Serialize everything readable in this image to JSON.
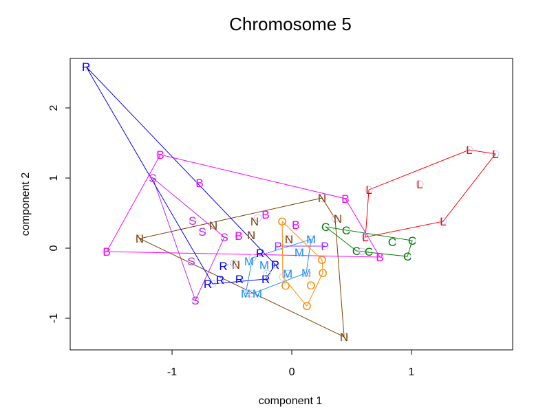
{
  "chart_data": {
    "type": "scatter",
    "title": "Chromosome 5",
    "xlabel": "component 1",
    "ylabel": "component 2",
    "xlim": [
      -1.851,
      1.845
    ],
    "ylim": [
      -1.451,
      2.706
    ],
    "xticks": [
      -1,
      0,
      1
    ],
    "yticks": [
      -1,
      0,
      1,
      2
    ],
    "grid": false,
    "hulls": true,
    "groups": [
      {
        "label": "L",
        "color": "#FF0000",
        "points": [
          [
            0.644,
            0.833
          ],
          [
            1.483,
            1.402
          ],
          [
            1.701,
            1.343
          ],
          [
            1.069,
            0.912
          ],
          [
            1.264,
            0.382
          ],
          [
            0.615,
            0.157
          ]
        ]
      },
      {
        "label": "C",
        "color": "#008000",
        "points": [
          [
            0.282,
            0.304
          ],
          [
            0.454,
            0.255
          ],
          [
            0.839,
            0.088
          ],
          [
            1.006,
            0.108
          ],
          [
            0.966,
            -0.118
          ],
          [
            0.54,
            -0.039
          ],
          [
            0.586,
            -0.049
          ]
        ]
      },
      {
        "label": "B",
        "color": "#FF00FF",
        "points": [
          [
            -1.098,
            1.333
          ],
          [
            -0.77,
            0.931
          ],
          [
            -0.218,
            0.48
          ],
          [
            0.034,
            0.333
          ],
          [
            -0.443,
            0.176
          ],
          [
            -1.546,
            -0.049
          ],
          [
            0.448,
            0.706
          ],
          [
            0.736,
            -0.127
          ]
        ]
      },
      {
        "label": "S",
        "color": "#CC22EE",
        "points": [
          [
            -1.161,
            1.0
          ],
          [
            -0.828,
            0.392
          ],
          [
            -0.747,
            0.235
          ],
          [
            -0.563,
            0.157
          ],
          [
            -0.839,
            -0.186
          ],
          [
            -0.805,
            -0.745
          ]
        ]
      },
      {
        "label": "N",
        "color": "#7F4000",
        "points": [
          [
            -1.27,
            0.137
          ],
          [
            -0.655,
            0.324
          ],
          [
            -0.282,
            0.431
          ],
          [
            -0.339,
            0.186
          ],
          [
            -0.466,
            -0.235
          ],
          [
            0.253,
            0.716
          ],
          [
            0.362,
            0.421
          ],
          [
            -0.023,
            0.127
          ],
          [
            0.437,
            -1.265
          ]
        ]
      },
      {
        "label": "R",
        "color": "#0000FF",
        "points": [
          [
            -1.718,
            2.588
          ],
          [
            -0.264,
            -0.069
          ],
          [
            -0.138,
            -0.235
          ],
          [
            -0.483,
            -0.216
          ],
          [
            -0.598,
            -0.451
          ],
          [
            -0.661,
            -0.51
          ],
          [
            -0.437,
            -0.441
          ],
          [
            -0.218,
            -0.441
          ]
        ]
      },
      {
        "label": "M",
        "color": "#1E90FF",
        "points": [
          [
            -0.328,
            -0.137
          ],
          [
            0.161,
            0.127
          ],
          [
            0.063,
            -0.059
          ],
          [
            -0.207,
            -0.363
          ],
          [
            -0.034,
            -0.363
          ],
          [
            0.121,
            -0.353
          ],
          [
            -0.385,
            -0.647
          ],
          [
            -0.328,
            -0.647
          ]
        ]
      },
      {
        "label": "P",
        "color": "#9B30FF",
        "points": [
          [
            -0.092,
            0.029
          ],
          [
            0.276,
            0.029
          ]
        ]
      },
      {
        "label": "O",
        "color": "#FF8C00",
        "points": [
          [
            -0.08,
            0.382
          ],
          [
            0.253,
            -0.167
          ],
          [
            0.259,
            -0.353
          ],
          [
            0.126,
            -0.353
          ],
          [
            -0.075,
            -0.412
          ],
          [
            0.126,
            -0.824
          ]
        ]
      }
    ]
  }
}
